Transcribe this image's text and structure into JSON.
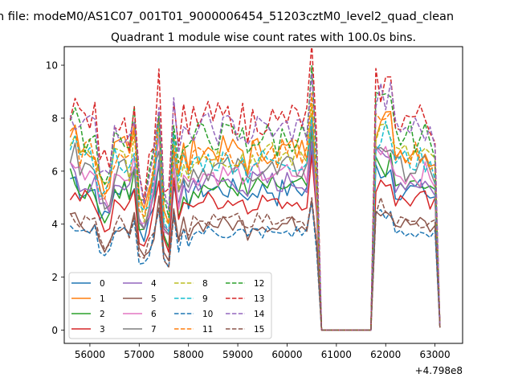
{
  "figure": {
    "suptitle": "n file: modeM0/AS1C07_001T01_9000006454_51203cztM0_level2_quad_clean",
    "title": "Quadrant 1 module wise count rates with 100.0s bins.",
    "offset_label": "+4.798e8"
  },
  "chart_data": {
    "type": "line",
    "title": "Quadrant 1 module wise count rates with 100.0s bins.",
    "xlabel": "",
    "ylabel": "",
    "x_offset": 479800000,
    "xlim": [
      55480,
      63560
    ],
    "ylim": [
      -0.5,
      10.7
    ],
    "xticks": [
      56000,
      57000,
      58000,
      59000,
      60000,
      61000,
      62000,
      63000
    ],
    "xtick_labels": [
      "56000",
      "57000",
      "58000",
      "59000",
      "60000",
      "61000",
      "62000",
      "63000"
    ],
    "yticks": [
      0,
      2,
      4,
      6,
      8,
      10
    ],
    "ytick_labels": [
      "0",
      "2",
      "4",
      "6",
      "8",
      "10"
    ],
    "grid": false,
    "legend": {
      "position": "lower-left",
      "columns": 4
    },
    "x_start": 55600,
    "x_step": 100,
    "n_points": 76,
    "gap": {
      "from": 60700,
      "to": 61700,
      "value": 0
    },
    "series": [
      {
        "name": "0",
        "color": "#1f77b4",
        "dash": "solid",
        "base": 5.3
      },
      {
        "name": "1",
        "color": "#ff7f0e",
        "dash": "solid",
        "base": 6.8
      },
      {
        "name": "2",
        "color": "#2ca02c",
        "dash": "solid",
        "base": 5.4
      },
      {
        "name": "3",
        "color": "#d62728",
        "dash": "solid",
        "base": 4.9
      },
      {
        "name": "4",
        "color": "#9467bd",
        "dash": "solid",
        "base": 5.6
      },
      {
        "name": "5",
        "color": "#8c564b",
        "dash": "solid",
        "base": 4.0
      },
      {
        "name": "6",
        "color": "#e377c2",
        "dash": "solid",
        "base": 5.9
      },
      {
        "name": "7",
        "color": "#7f7f7f",
        "dash": "solid",
        "base": 6.1
      },
      {
        "name": "8",
        "color": "#bcbd22",
        "dash": "dashed",
        "base": 6.6
      },
      {
        "name": "9",
        "color": "#17becf",
        "dash": "dashed",
        "base": 6.4
      },
      {
        "name": "10",
        "color": "#1f77b4",
        "dash": "dashed",
        "base": 3.7
      },
      {
        "name": "11",
        "color": "#ff7f0e",
        "dash": "dashed",
        "base": 6.7
      },
      {
        "name": "12",
        "color": "#2ca02c",
        "dash": "dashed",
        "base": 7.3
      },
      {
        "name": "13",
        "color": "#d62728",
        "dash": "dashed",
        "base": 8.0
      },
      {
        "name": "14",
        "color": "#9467bd",
        "dash": "dashed",
        "base": 7.6
      },
      {
        "name": "15",
        "color": "#8c564b",
        "dash": "dashed",
        "base": 4.1
      }
    ]
  }
}
